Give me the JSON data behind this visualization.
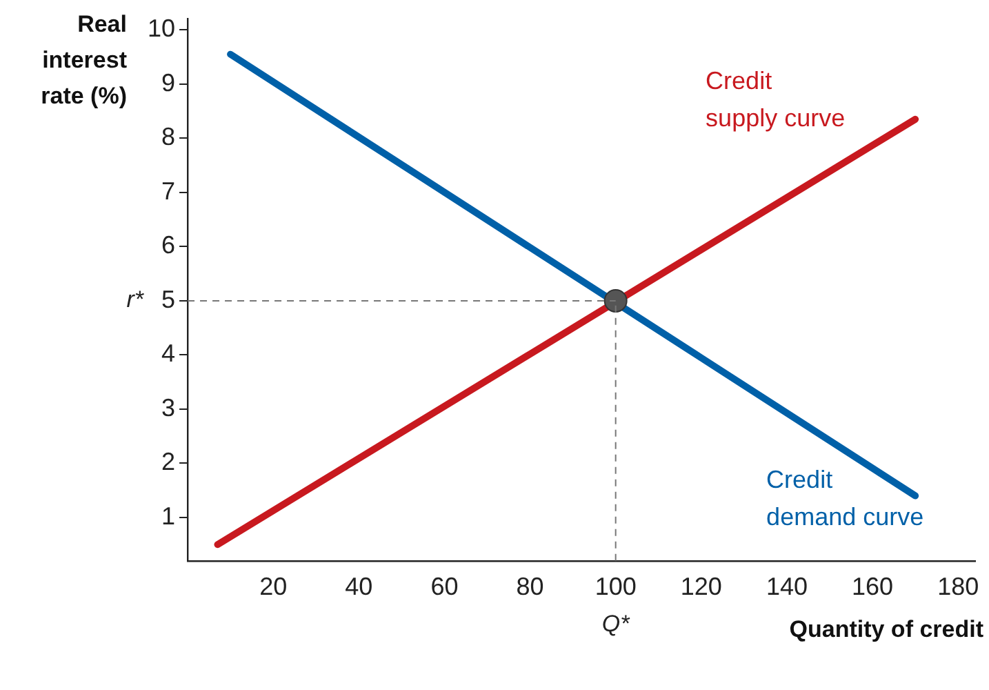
{
  "chart_data": {
    "type": "line",
    "xlabel": "Quantity of credit",
    "ylabel": "Real interest rate (%)",
    "xlim": [
      0,
      184
    ],
    "xticks": [
      20,
      40,
      60,
      80,
      100,
      120,
      140,
      160,
      180
    ],
    "ylim": [
      0.2,
      10.2
    ],
    "yticks": [
      1,
      2,
      3,
      4,
      5,
      6,
      7,
      8,
      9,
      10
    ],
    "series": [
      {
        "name": "Credit supply curve",
        "color": "#c8191f",
        "x": [
          7,
          170
        ],
        "values": [
          0.5,
          8.35
        ]
      },
      {
        "name": "Credit demand curve",
        "color": "#0060a8",
        "x": [
          10,
          170
        ],
        "values": [
          9.55,
          1.4
        ]
      },
      {
        "type": "scatter",
        "marker": "circle",
        "color": "#555555",
        "x": [
          100
        ],
        "values": [
          5
        ]
      }
    ],
    "ref_lines": [
      {
        "axis": "y",
        "value": 5,
        "label": "r*",
        "color": "#777777",
        "line_style": "dashed"
      },
      {
        "axis": "x",
        "value": 100,
        "label": "Q*",
        "color": "#777777",
        "line_style": "dashed"
      }
    ],
    "grid": false,
    "legend": false,
    "marker": "none",
    "line_style": "solid"
  }
}
